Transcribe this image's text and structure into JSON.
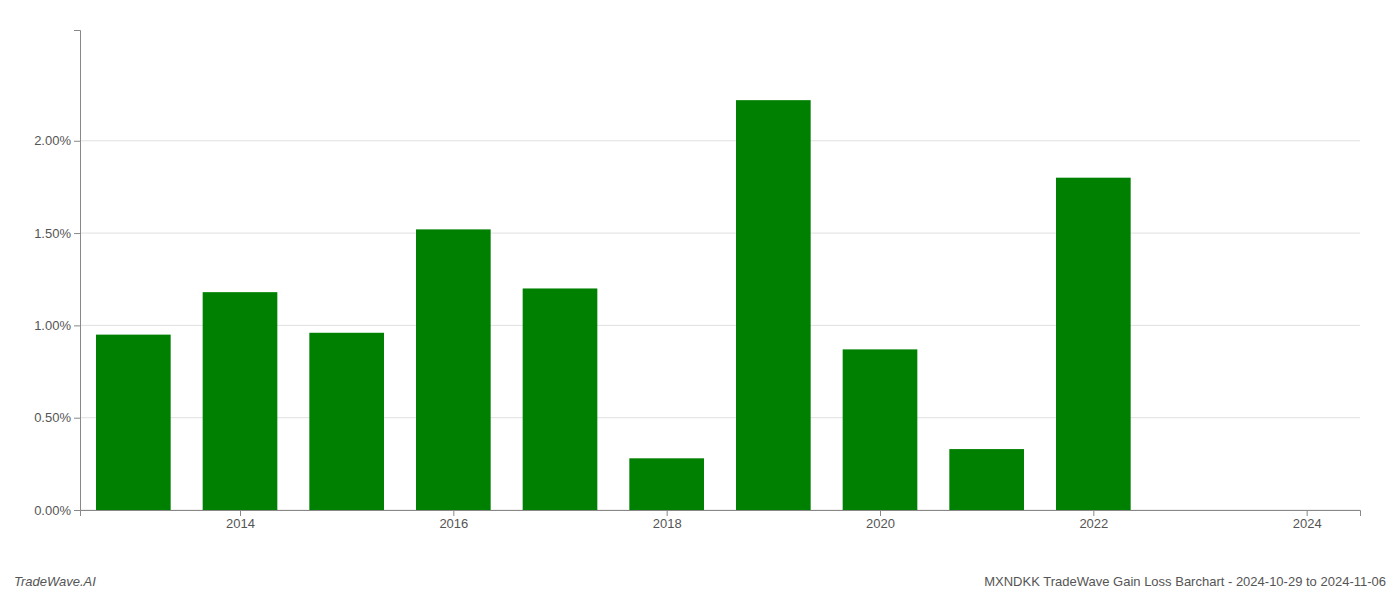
{
  "chart_data": {
    "type": "bar",
    "x": [
      2013,
      2014,
      2015,
      2016,
      2017,
      2018,
      2019,
      2020,
      2021,
      2022,
      2023
    ],
    "values": [
      0.0095,
      0.0118,
      0.0096,
      0.0152,
      0.012,
      0.0028,
      0.0222,
      0.0087,
      0.0033,
      0.018,
      0.0
    ],
    "color": "#008000",
    "xlim": [
      2012.5,
      2024.5
    ],
    "xticks": [
      2014,
      2016,
      2018,
      2020,
      2022,
      2024
    ],
    "ylim": [
      0,
      0.026
    ],
    "yticks": [
      {
        "value": 0.0,
        "label": "0.00%"
      },
      {
        "value": 0.005,
        "label": "0.50%"
      },
      {
        "value": 0.01,
        "label": "1.00%"
      },
      {
        "value": 0.015,
        "label": "1.50%"
      },
      {
        "value": 0.02,
        "label": "2.00%"
      }
    ],
    "grid": true,
    "annotations": [
      "TradeWave.AI",
      "MXNDKK TradeWave Gain Loss Barchart - 2024-10-29 to 2024-11-06"
    ]
  }
}
